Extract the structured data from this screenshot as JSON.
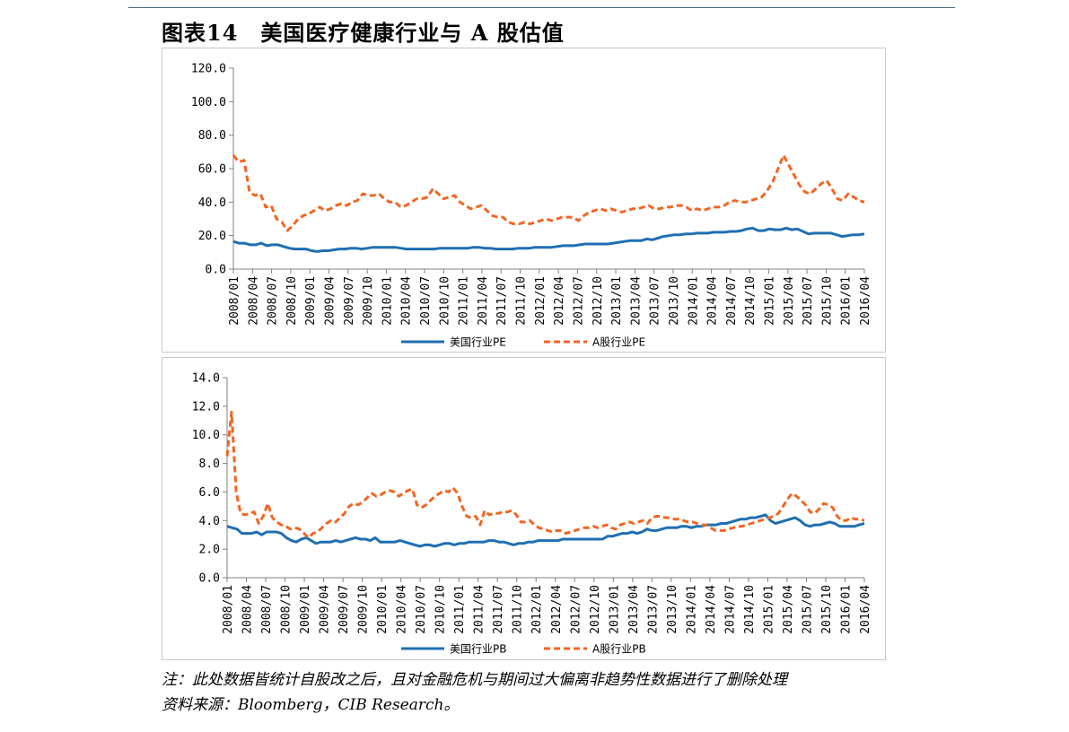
{
  "figure": {
    "title": "图表14　美国医疗健康行业与 A 股估值",
    "note_line1": "注：此处数据皆统计自股改之后，且对金融危机与期间过大偏离非趋势性数据进行了删除处理",
    "note_line2": "资料来源：Bloomberg，CIB Research。"
  },
  "colors": {
    "us": "#1f6fb2",
    "cn": "#f26522",
    "axis": "#808080",
    "border": "#c8c8c8"
  },
  "chart_data": [
    {
      "type": "line",
      "title": "",
      "xlabel": "",
      "ylabel": "",
      "ylim": [
        0,
        120
      ],
      "y_ticks": [
        "0.0",
        "20.0",
        "40.0",
        "60.0",
        "80.0",
        "100.0",
        "120.0"
      ],
      "x_ticks": [
        "2008/01",
        "2008/04",
        "2008/07",
        "2008/10",
        "2009/01",
        "2009/04",
        "2009/07",
        "2009/10",
        "2010/01",
        "2010/04",
        "2010/07",
        "2010/10",
        "2011/01",
        "2011/04",
        "2011/07",
        "2011/10",
        "2012/01",
        "2012/04",
        "2012/07",
        "2012/10",
        "2013/01",
        "2013/04",
        "2013/07",
        "2013/10",
        "2014/01",
        "2014/04",
        "2014/07",
        "2014/10",
        "2015/01",
        "2015/04",
        "2015/07",
        "2015/10",
        "2016/01",
        "2016/04"
      ],
      "grid": false,
      "legend": "bottom",
      "series": [
        {
          "name": "美国行业PE",
          "style": "solid",
          "values": [
            16.5,
            15.5,
            15.5,
            14.5,
            14.5,
            15.5,
            14,
            14.5,
            14.5,
            13.5,
            12.5,
            12,
            12,
            12,
            11,
            10.5,
            11,
            11,
            11.5,
            12,
            12,
            12.5,
            12.5,
            12,
            12.5,
            13,
            13,
            13,
            13,
            13,
            12.5,
            12,
            12,
            12,
            12,
            12,
            12,
            12.5,
            12.5,
            12.5,
            12.5,
            12.5,
            12.5,
            13,
            13,
            12.5,
            12.5,
            12,
            12,
            12,
            12,
            12.5,
            12.5,
            12.5,
            13,
            13,
            13,
            13,
            13.5,
            14,
            14,
            14,
            14.5,
            15,
            15,
            15,
            15,
            15,
            15.5,
            16,
            16.5,
            17,
            17,
            17,
            18,
            17.5,
            18.5,
            19.5,
            20,
            20.5,
            20.5,
            21,
            21,
            21.5,
            21.5,
            21.5,
            22,
            22,
            22,
            22.5,
            22.5,
            23,
            24,
            24.5,
            23,
            23,
            24,
            23.5,
            23.5,
            24.5,
            23.5,
            24,
            22.5,
            21,
            21.5,
            21.5,
            21.5,
            21.5,
            20.5,
            19.5,
            20,
            20.5,
            20.5,
            21
          ]
        },
        {
          "name": "A股行业PE",
          "style": "dashed",
          "values": [
            68,
            64,
            65,
            46,
            44,
            45,
            37,
            38,
            30,
            28,
            23,
            26,
            30,
            32,
            33,
            35,
            37,
            35,
            36,
            38,
            39,
            38,
            40,
            41,
            45,
            44,
            44,
            45,
            42,
            40,
            40,
            37,
            38,
            40,
            42,
            42,
            43,
            48,
            45,
            42,
            43,
            44,
            40,
            38,
            36,
            37,
            38,
            35,
            32,
            31,
            31,
            28,
            27,
            27,
            28,
            27,
            28,
            29,
            30,
            29,
            30,
            31,
            31,
            31,
            29,
            32,
            34,
            35,
            36,
            35,
            36,
            35,
            34,
            35,
            36,
            36,
            37,
            38,
            36,
            36,
            37,
            37,
            38,
            38,
            37,
            35,
            36,
            35,
            36,
            37,
            37,
            38,
            40,
            41,
            40,
            40,
            41,
            42,
            43,
            47,
            52,
            60,
            68,
            62,
            56,
            50,
            46,
            45,
            48,
            51,
            53,
            48,
            42,
            41,
            45,
            43,
            41,
            40
          ]
        }
      ]
    },
    {
      "type": "line",
      "title": "",
      "xlabel": "",
      "ylabel": "",
      "ylim": [
        0,
        14
      ],
      "y_ticks": [
        "0.0",
        "2.0",
        "4.0",
        "6.0",
        "8.0",
        "10.0",
        "12.0",
        "14.0"
      ],
      "x_ticks": [
        "2008/01",
        "2008/04",
        "2008/07",
        "2008/10",
        "2009/01",
        "2009/04",
        "2009/07",
        "2009/10",
        "2010/01",
        "2010/04",
        "2010/07",
        "2010/10",
        "2011/01",
        "2011/04",
        "2011/07",
        "2011/10",
        "2012/01",
        "2012/04",
        "2012/07",
        "2012/10",
        "2013/01",
        "2013/04",
        "2013/07",
        "2013/10",
        "2014/01",
        "2014/04",
        "2014/07",
        "2014/10",
        "2015/01",
        "2015/04",
        "2015/07",
        "2015/10",
        "2016/01",
        "2016/04"
      ],
      "grid": false,
      "legend": "bottom",
      "series": [
        {
          "name": "美国行业PB",
          "style": "solid",
          "values": [
            3.6,
            3.5,
            3.4,
            3.1,
            3.1,
            3.1,
            3.2,
            3,
            3.2,
            3.2,
            3.2,
            3.1,
            2.8,
            2.6,
            2.5,
            2.7,
            2.8,
            2.6,
            2.4,
            2.5,
            2.5,
            2.5,
            2.6,
            2.5,
            2.6,
            2.7,
            2.8,
            2.7,
            2.7,
            2.6,
            2.8,
            2.5,
            2.5,
            2.5,
            2.5,
            2.6,
            2.5,
            2.4,
            2.3,
            2.2,
            2.3,
            2.3,
            2.2,
            2.3,
            2.4,
            2.4,
            2.3,
            2.4,
            2.4,
            2.5,
            2.5,
            2.5,
            2.5,
            2.6,
            2.6,
            2.5,
            2.5,
            2.4,
            2.3,
            2.4,
            2.4,
            2.5,
            2.5,
            2.6,
            2.6,
            2.6,
            2.6,
            2.6,
            2.7,
            2.7,
            2.7,
            2.7,
            2.7,
            2.7,
            2.7,
            2.7,
            2.7,
            2.9,
            2.9,
            3,
            3.1,
            3.1,
            3.2,
            3.1,
            3.2,
            3.4,
            3.3,
            3.3,
            3.4,
            3.5,
            3.5,
            3.5,
            3.6,
            3.6,
            3.5,
            3.6,
            3.6,
            3.7,
            3.7,
            3.7,
            3.8,
            3.8,
            3.9,
            4,
            4.1,
            4.1,
            4.2,
            4.2,
            4.3,
            4.4,
            4,
            3.8,
            3.9,
            4,
            4.1,
            4.2,
            4,
            3.7,
            3.6,
            3.7,
            3.7,
            3.8,
            3.9,
            3.8,
            3.6,
            3.6,
            3.6,
            3.6,
            3.7,
            3.8
          ]
        },
        {
          "name": "A股行业PB",
          "style": "dashed",
          "values": [
            8.5,
            11.6,
            6,
            4.5,
            4.4,
            4.5,
            4.6,
            3.8,
            4.3,
            5.2,
            4.2,
            3.9,
            3.7,
            3.6,
            3.4,
            3.5,
            3.4,
            3.1,
            2.8,
            3.1,
            3.2,
            3.5,
            3.8,
            4,
            3.9,
            4.2,
            4.5,
            5,
            5.2,
            5.1,
            5.3,
            5.6,
            5.9,
            5.7,
            5.8,
            6,
            6.1,
            6,
            5.7,
            5.9,
            6.1,
            6.2,
            5.1,
            4.9,
            5.1,
            5.4,
            5.7,
            5.9,
            6.1,
            6,
            6.3,
            5.9,
            5,
            4.3,
            4.2,
            4.3,
            3.7,
            4.7,
            4.4,
            4.5,
            4.5,
            4.6,
            4.6,
            4.7,
            4.4,
            3.9,
            3.9,
            4,
            3.7,
            3.5,
            3.4,
            3.3,
            3.2,
            3.3,
            3.3,
            3.1,
            3.2,
            3.3,
            3.4,
            3.5,
            3.5,
            3.6,
            3.5,
            3.6,
            3.7,
            3.5,
            3.4,
            3.7,
            3.8,
            3.9,
            3.8,
            3.9,
            4,
            3.8,
            4.2,
            4.3,
            4.3,
            4.2,
            4.2,
            4.1,
            4.1,
            4,
            3.9,
            3.9,
            3.8,
            3.7,
            3.7,
            3.5,
            3.3,
            3.3,
            3.3,
            3.4,
            3.5,
            3.6,
            3.6,
            3.7,
            3.8,
            3.9,
            4,
            4.1,
            4.2,
            4.3,
            4.5,
            5,
            5.5,
            5.9,
            5.7,
            5.4,
            5.1,
            4.6,
            4.5,
            4.8,
            5.2,
            5.1,
            4.9,
            4.3,
            4,
            4,
            4.2,
            4.1,
            4.1,
            4
          ]
        }
      ]
    }
  ]
}
